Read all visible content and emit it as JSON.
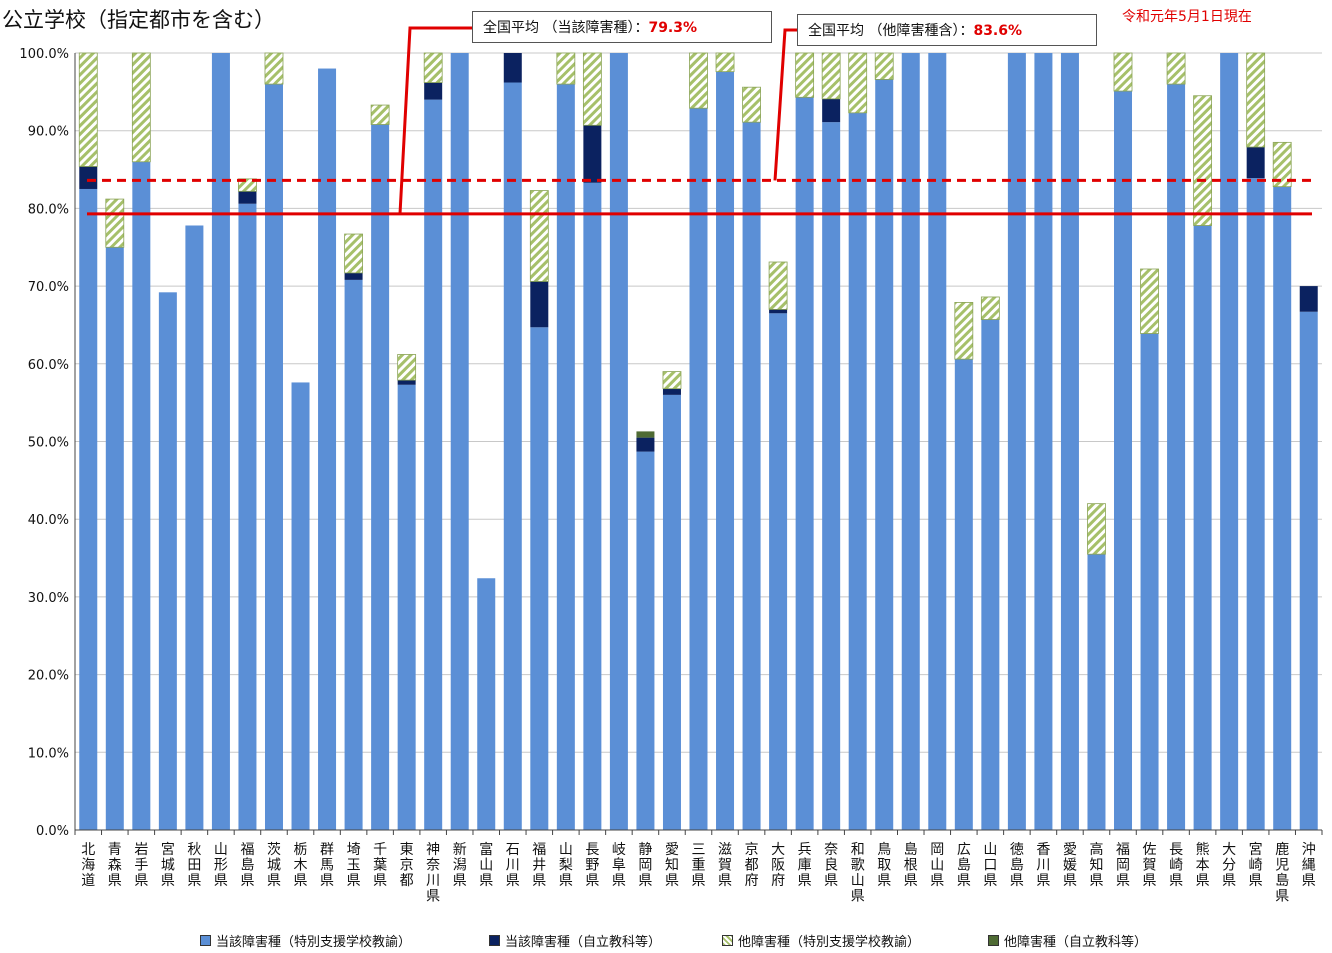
{
  "title": "公立学校（指定都市を含む）",
  "date_note": "令和元年5月1日現在",
  "avg1": {
    "label": "全国平均 （当該障害種）：",
    "value": "79.3%"
  },
  "avg2": {
    "label": "全国平均 （他障害種含）：",
    "value": "83.6%"
  },
  "colors": {
    "s1": "#5b8fd6",
    "s2": "#0b2260",
    "s3_stripe": "#a6c06a",
    "s4": "#4f6b34",
    "avg": "#e00000"
  },
  "chart_data": {
    "type": "bar",
    "stacked": true,
    "ylim": [
      0,
      100
    ],
    "yticks": [
      "0.0%",
      "10.0%",
      "20.0%",
      "30.0%",
      "40.0%",
      "50.0%",
      "60.0%",
      "70.0%",
      "80.0%",
      "90.0%",
      "100.0%"
    ],
    "categories": [
      "北海道",
      "青森県",
      "岩手県",
      "宮城県",
      "秋田県",
      "山形県",
      "福島県",
      "茨城県",
      "栃木県",
      "群馬県",
      "埼玉県",
      "千葉県",
      "東京都",
      "神奈川県",
      "新潟県",
      "富山県",
      "石川県",
      "福井県",
      "山梨県",
      "長野県",
      "岐阜県",
      "静岡県",
      "愛知県",
      "三重県",
      "滋賀県",
      "京都府",
      "大阪府",
      "兵庫県",
      "奈良県",
      "和歌山県",
      "鳥取県",
      "島根県",
      "岡山県",
      "広島県",
      "山口県",
      "徳島県",
      "香川県",
      "愛媛県",
      "高知県",
      "福岡県",
      "佐賀県",
      "長崎県",
      "熊本県",
      "大分県",
      "宮崎県",
      "鹿児島県",
      "沖縄県"
    ],
    "series": [
      {
        "name": "当該障害種（特別支援学校教諭）",
        "values": [
          82.5,
          75.0,
          86.0,
          69.2,
          77.8,
          100,
          80.6,
          96.0,
          57.6,
          98.0,
          70.8,
          90.8,
          57.3,
          94.0,
          100,
          32.4,
          96.2,
          64.7,
          96.0,
          83.3,
          100,
          48.7,
          56.0,
          92.9,
          97.6,
          91.1,
          66.5,
          94.3,
          91.1,
          92.3,
          96.6,
          100,
          100,
          60.6,
          65.7,
          100,
          100,
          100,
          35.5,
          95.1,
          63.9,
          96.0,
          77.8,
          100,
          83.9,
          82.8,
          66.7
        ]
      },
      {
        "name": "当該障害種（自立教科等）",
        "values": [
          2.9,
          0,
          0,
          0,
          0,
          0,
          1.6,
          0,
          0,
          0,
          0.9,
          0,
          0.6,
          2.2,
          0,
          0,
          3.8,
          5.9,
          0,
          7.4,
          0,
          1.8,
          0.8,
          0,
          0,
          0,
          0.5,
          0,
          3.0,
          0,
          0,
          0,
          0,
          0,
          0,
          0,
          0,
          0,
          0,
          0,
          0,
          0,
          0,
          0,
          4.0,
          0,
          3.3
        ]
      },
      {
        "name": "他障害種（特別支援学校教諭）",
        "values": [
          14.6,
          6.2,
          14.0,
          0,
          0,
          0,
          1.6,
          4.0,
          0,
          0,
          5.0,
          2.5,
          3.3,
          3.8,
          0,
          0,
          0,
          11.7,
          4.0,
          9.3,
          0,
          0,
          2.2,
          7.1,
          2.4,
          4.5,
          6.1,
          5.7,
          5.9,
          7.7,
          3.4,
          0,
          0,
          7.3,
          2.9,
          0,
          0,
          0,
          6.5,
          4.9,
          8.3,
          4.0,
          16.7,
          0,
          12.1,
          5.7,
          0
        ]
      },
      {
        "name": "他障害種（自立教科等）",
        "values": [
          0,
          0,
          0,
          0,
          0,
          0,
          0,
          0,
          0,
          0,
          0,
          0,
          0,
          0,
          0,
          0,
          0,
          0,
          0,
          0,
          0,
          0.8,
          0,
          0,
          0,
          0,
          0,
          0,
          0,
          0,
          0,
          0,
          0,
          0,
          0,
          0,
          0,
          0,
          0,
          0,
          0,
          0,
          0,
          0,
          0,
          0,
          0
        ]
      }
    ],
    "avg_lines": [
      79.3,
      83.6
    ]
  }
}
